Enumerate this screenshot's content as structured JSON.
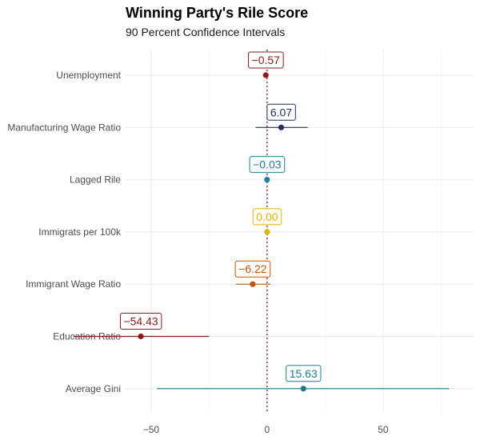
{
  "chart_data": {
    "type": "scatter",
    "title": "Winning Party's Rile Score",
    "subtitle": "90 Percent Confidence Intervals",
    "xlabel": "",
    "ylabel": "",
    "xlim": [
      -61,
      89
    ],
    "x_ticks": [
      -50,
      0,
      50
    ],
    "x_tick_labels": [
      "-50",
      "0",
      "50"
    ],
    "grid": true,
    "reference_line": {
      "x": 0,
      "style": "dotted",
      "color": "#8b1a1a"
    },
    "categories": [
      "Unemployment",
      "Manufacturing Wage Ratio",
      "Lagged Rile",
      "Immigrats per 100k",
      "Immigrant Wage Ratio",
      "Education Ratio",
      "Average Gini"
    ],
    "points": [
      {
        "category": "Unemployment",
        "estimate": -0.57,
        "lower": -1.2,
        "upper": 0.1,
        "label": "−0.57",
        "color": "#8b1a1a"
      },
      {
        "category": "Manufacturing Wage Ratio",
        "estimate": 6.07,
        "lower": -5.0,
        "upper": 17.5,
        "label": "6.07",
        "color": "#1f2f5e"
      },
      {
        "category": "Lagged Rile",
        "estimate": -0.03,
        "lower": -0.4,
        "upper": 0.3,
        "label": "−0.03",
        "color": "#1a7f99"
      },
      {
        "category": "Immigrats per 100k",
        "estimate": 0.0,
        "lower": -0.3,
        "upper": 0.3,
        "label": "0.00",
        "color": "#e0b400"
      },
      {
        "category": "Immigrant Wage Ratio",
        "estimate": -6.22,
        "lower": -13.5,
        "upper": 1.5,
        "label": "−6.22",
        "color": "#c0560e"
      },
      {
        "category": "Education Ratio",
        "estimate": -54.43,
        "lower": -83.5,
        "upper": -25.0,
        "label": "−54.43",
        "color": "#8b1a1a"
      },
      {
        "category": "Average Gini",
        "estimate": 15.63,
        "lower": -47.5,
        "upper": 78.5,
        "label": "15.63",
        "color": "#1a7f8c"
      }
    ]
  }
}
